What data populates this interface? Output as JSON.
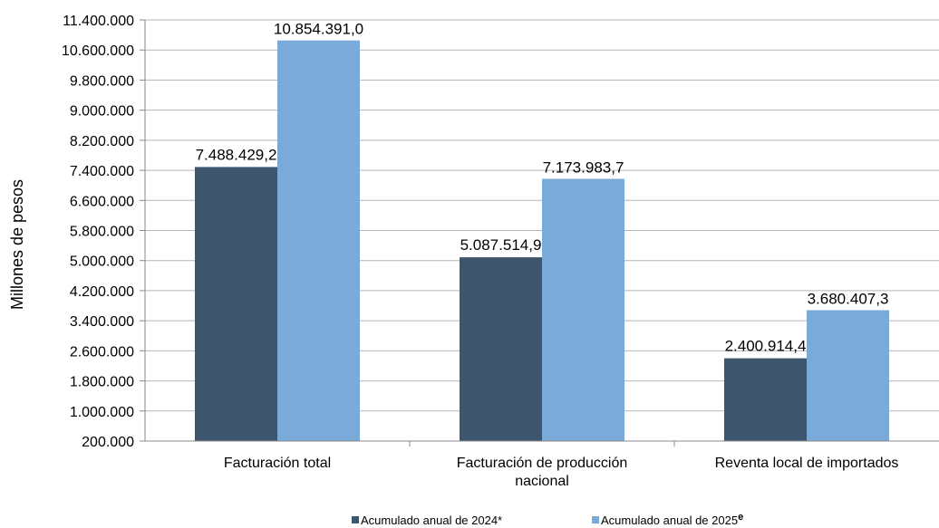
{
  "chart_data": {
    "type": "bar",
    "title": "",
    "xlabel": "",
    "ylabel": "Millones de pesos",
    "ylim": [
      200000,
      11400000
    ],
    "ytick_step": 800000,
    "y_tick_labels": [
      "200.000",
      "1.000.000",
      "1.800.000",
      "2.600.000",
      "3.400.000",
      "4.200.000",
      "5.000.000",
      "5.800.000",
      "6.600.000",
      "7.400.000",
      "8.200.000",
      "9.000.000",
      "9.800.000",
      "10.600.000",
      "11.400.000"
    ],
    "grid": true,
    "legend_position": "bottom",
    "categories": [
      [
        "Facturación total"
      ],
      [
        "Facturación de producción",
        "nacional"
      ],
      [
        "Reventa local de importados"
      ]
    ],
    "series": [
      {
        "name": "Acumulado anual de 2024*",
        "color": "#3d566e",
        "values": [
          7488429.2,
          5087514.9,
          2400914.4
        ],
        "labels": [
          "7.488.429,2",
          "5.087.514,9",
          "2.400.914,4"
        ]
      },
      {
        "name": "Acumulado anual de 2025",
        "name_superscript": "e",
        "color": "#7aaad8",
        "values": [
          10854391.0,
          7173983.7,
          3680407.3
        ],
        "labels": [
          "10.854.391,0",
          "7.173.983,7",
          "3.680.407,3"
        ]
      }
    ]
  }
}
